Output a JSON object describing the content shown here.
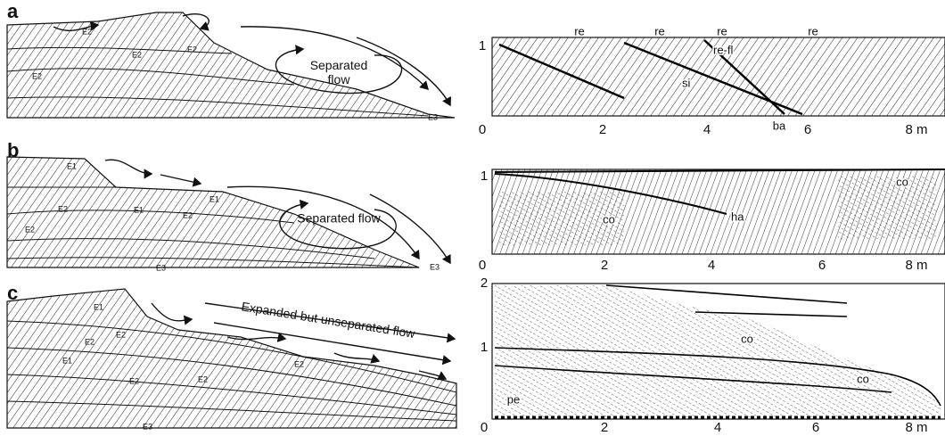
{
  "panels": [
    {
      "letter": "a",
      "left": {
        "labels": [
          "E2",
          "E2",
          "E2",
          "E2",
          "E3"
        ],
        "flow": "Separated flow"
      },
      "right": {
        "labels": [
          "re",
          "re",
          "re",
          "re",
          "re-fl",
          "si",
          "ba"
        ],
        "x_ticks": [
          "0",
          "2",
          "4",
          "6",
          "8 m"
        ],
        "y_ticks": [
          "1"
        ]
      }
    },
    {
      "letter": "b",
      "left": {
        "labels": [
          "E1",
          "E1",
          "E1",
          "E2",
          "E2",
          "E2",
          "E3",
          "E3"
        ],
        "flow": "Separated flow"
      },
      "right": {
        "labels": [
          "ha",
          "co",
          "co"
        ],
        "x_ticks": [
          "0",
          "2",
          "4",
          "6",
          "8 m"
        ],
        "y_ticks": [
          "1"
        ]
      }
    },
    {
      "letter": "c",
      "left": {
        "labels": [
          "E1",
          "E1",
          "E2",
          "E2",
          "E2",
          "E2",
          "E2",
          "E3"
        ],
        "flow": "Expanded but unseparated flow"
      },
      "right": {
        "labels": [
          "co",
          "co",
          "pe"
        ],
        "x_ticks": [
          "0",
          "2",
          "4",
          "6",
          "8 m"
        ],
        "y_ticks": [
          "2",
          "1"
        ]
      }
    }
  ]
}
